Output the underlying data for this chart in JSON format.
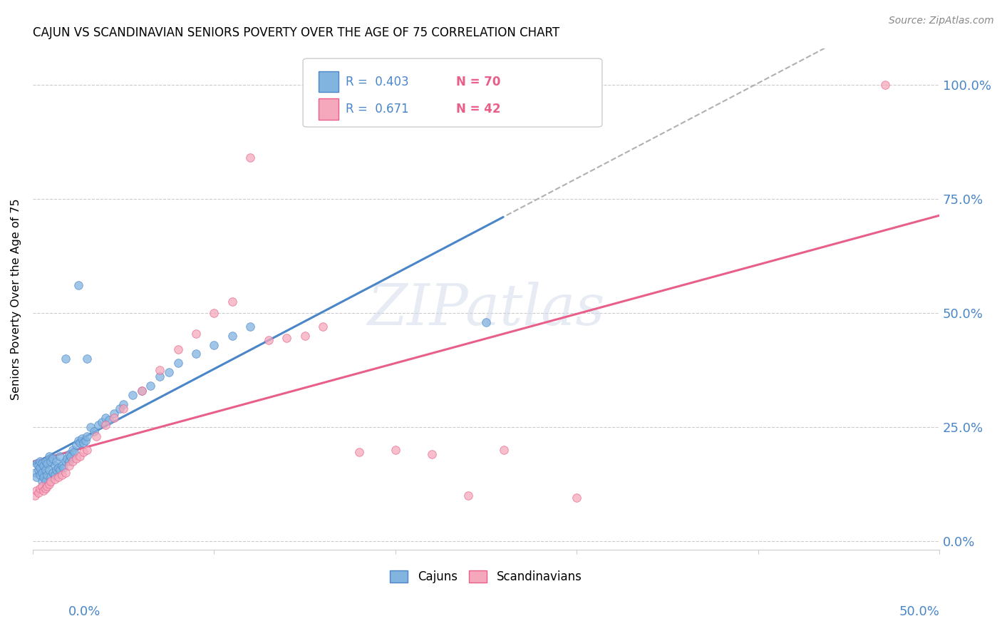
{
  "title": "CAJUN VS SCANDINAVIAN SENIORS POVERTY OVER THE AGE OF 75 CORRELATION CHART",
  "source": "Source: ZipAtlas.com",
  "ylabel": "Seniors Poverty Over the Age of 75",
  "ytick_labels": [
    "0.0%",
    "25.0%",
    "50.0%",
    "75.0%",
    "100.0%"
  ],
  "ytick_values": [
    0.0,
    0.25,
    0.5,
    0.75,
    1.0
  ],
  "xlim": [
    0.0,
    0.5
  ],
  "ylim": [
    -0.02,
    1.08
  ],
  "cajun_color": "#82b4e0",
  "scandinavian_color": "#f5a8bc",
  "cajun_edge_color": "#4a86c8",
  "scandinavian_edge_color": "#e8608a",
  "dashed_line_color": "#b0b0b0",
  "cajun_line_color": "#4a86c8",
  "scandinavian_line_color": "#e8608a",
  "legend_r_cajun": "R =  0.403",
  "legend_n_cajun": "N = 70",
  "legend_r_scand": "R =  0.671",
  "legend_n_scand": "N = 42",
  "watermark": "ZIPatlas",
  "cajun_x": [
    0.001,
    0.002,
    0.002,
    0.003,
    0.003,
    0.004,
    0.004,
    0.004,
    0.005,
    0.005,
    0.005,
    0.006,
    0.006,
    0.007,
    0.007,
    0.007,
    0.008,
    0.008,
    0.009,
    0.009,
    0.01,
    0.01,
    0.011,
    0.011,
    0.012,
    0.012,
    0.013,
    0.013,
    0.014,
    0.015,
    0.015,
    0.016,
    0.017,
    0.018,
    0.019,
    0.02,
    0.02,
    0.021,
    0.022,
    0.023,
    0.024,
    0.025,
    0.026,
    0.027,
    0.028,
    0.029,
    0.03,
    0.032,
    0.034,
    0.036,
    0.038,
    0.04,
    0.042,
    0.045,
    0.048,
    0.05,
    0.055,
    0.06,
    0.065,
    0.07,
    0.075,
    0.08,
    0.09,
    0.1,
    0.11,
    0.12,
    0.025,
    0.018,
    0.03,
    0.25
  ],
  "cajun_y": [
    0.15,
    0.14,
    0.17,
    0.155,
    0.165,
    0.145,
    0.16,
    0.175,
    0.13,
    0.15,
    0.17,
    0.14,
    0.165,
    0.13,
    0.155,
    0.175,
    0.145,
    0.17,
    0.155,
    0.185,
    0.14,
    0.175,
    0.15,
    0.18,
    0.145,
    0.165,
    0.155,
    0.175,
    0.16,
    0.155,
    0.185,
    0.165,
    0.16,
    0.175,
    0.18,
    0.19,
    0.175,
    0.185,
    0.2,
    0.195,
    0.21,
    0.22,
    0.215,
    0.225,
    0.215,
    0.22,
    0.23,
    0.25,
    0.24,
    0.255,
    0.26,
    0.27,
    0.265,
    0.28,
    0.29,
    0.3,
    0.32,
    0.33,
    0.34,
    0.36,
    0.37,
    0.39,
    0.41,
    0.43,
    0.45,
    0.47,
    0.56,
    0.4,
    0.4,
    0.48
  ],
  "scand_x": [
    0.001,
    0.002,
    0.003,
    0.004,
    0.005,
    0.006,
    0.007,
    0.008,
    0.009,
    0.01,
    0.012,
    0.014,
    0.016,
    0.018,
    0.02,
    0.022,
    0.024,
    0.026,
    0.028,
    0.03,
    0.035,
    0.04,
    0.045,
    0.05,
    0.06,
    0.07,
    0.08,
    0.09,
    0.1,
    0.11,
    0.12,
    0.13,
    0.14,
    0.15,
    0.16,
    0.18,
    0.2,
    0.22,
    0.24,
    0.26,
    0.3,
    0.47
  ],
  "scand_y": [
    0.1,
    0.11,
    0.105,
    0.115,
    0.12,
    0.11,
    0.115,
    0.12,
    0.125,
    0.13,
    0.135,
    0.14,
    0.145,
    0.15,
    0.165,
    0.175,
    0.18,
    0.185,
    0.195,
    0.2,
    0.23,
    0.255,
    0.27,
    0.29,
    0.33,
    0.375,
    0.42,
    0.455,
    0.5,
    0.525,
    0.84,
    0.44,
    0.445,
    0.45,
    0.47,
    0.195,
    0.2,
    0.19,
    0.1,
    0.2,
    0.095,
    1.0
  ]
}
